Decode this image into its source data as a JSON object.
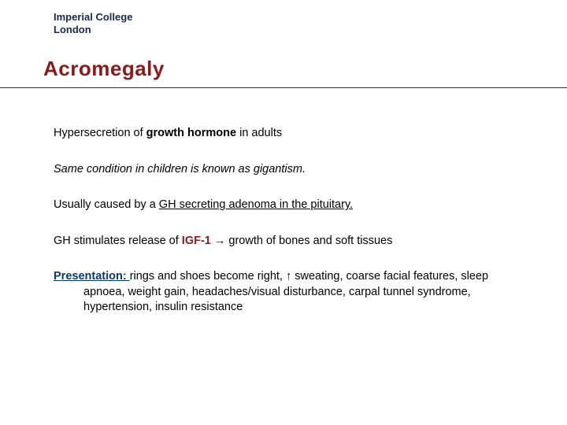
{
  "logo": {
    "line1": "Imperial College",
    "line2": "London"
  },
  "title": "Acromegaly",
  "p1": {
    "a": "Hypersecretion of ",
    "b": "growth hormone",
    "c": " in adults"
  },
  "p2": "Same condition in children is known as gigantism.",
  "p3": {
    "a": "Usually caused by a ",
    "b": "GH secreting adenoma in the pituitary."
  },
  "p4": {
    "a": "GH stimulates release of ",
    "b": "IGF-1",
    "c": " → growth of bones and soft tissues"
  },
  "p5": {
    "label": "Presentation: ",
    "body": "rings and shoes become right, ↑ sweating, coarse facial features, sleep apnoea, weight gain, headaches/visual disturbance, carpal tunnel syndrome, hypertension, insulin resistance"
  },
  "colors": {
    "title": "#8b1a1a",
    "rule": "#1a2a4a",
    "blue": "#0b3a6b",
    "text": "#000000",
    "bg": "#ffffff"
  },
  "fontsize": {
    "title": 26,
    "body": 14.5,
    "logo": 13
  }
}
